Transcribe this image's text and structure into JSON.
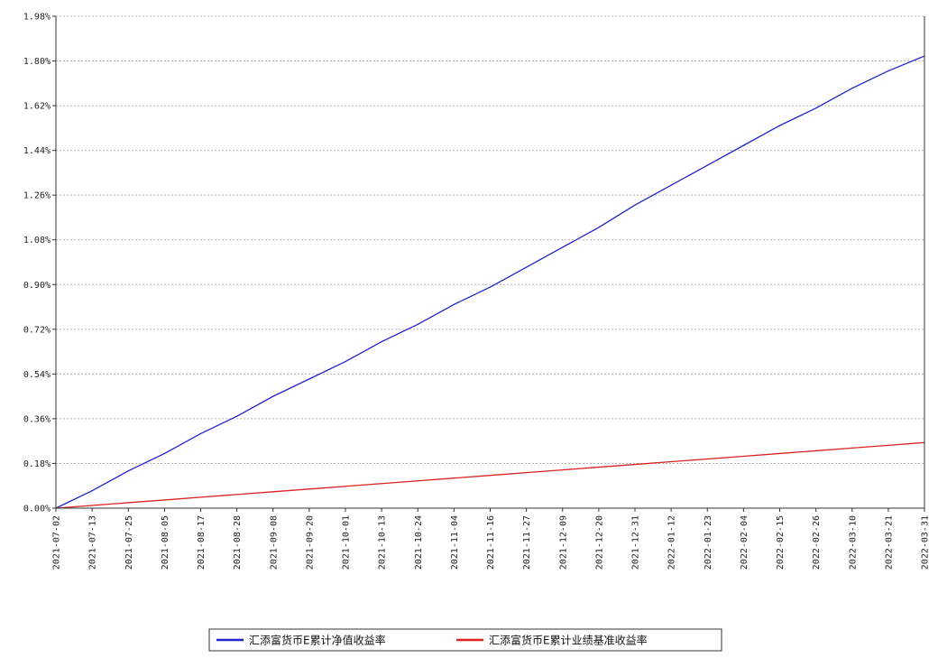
{
  "chart_data": {
    "type": "line",
    "x_ticks": [
      "2021-07-02",
      "2021-07-13",
      "2021-07-25",
      "2021-08-05",
      "2021-08-17",
      "2021-08-28",
      "2021-09-08",
      "2021-09-20",
      "2021-10-01",
      "2021-10-13",
      "2021-10-24",
      "2021-11-04",
      "2021-11-16",
      "2021-11-27",
      "2021-12-09",
      "2021-12-20",
      "2021-12-31",
      "2022-01-12",
      "2022-01-23",
      "2022-02-04",
      "2022-02-15",
      "2022-02-26",
      "2022-03-10",
      "2022-03-21",
      "2022-03-31"
    ],
    "y_ticks": [
      "0.00%",
      "0.18%",
      "0.36%",
      "0.54%",
      "0.72%",
      "0.90%",
      "1.08%",
      "1.26%",
      "1.44%",
      "1.62%",
      "1.80%",
      "1.98%"
    ],
    "ylim": [
      0,
      1.98
    ],
    "grid": "horizontal dashed",
    "legend_position": "bottom-center",
    "series": [
      {
        "name": "汇添富货币E累计净值收益率",
        "color": "#2222cc",
        "values": [
          0.0,
          0.07,
          0.15,
          0.22,
          0.3,
          0.37,
          0.45,
          0.52,
          0.59,
          0.67,
          0.74,
          0.82,
          0.89,
          0.97,
          1.05,
          1.13,
          1.22,
          1.3,
          1.38,
          1.46,
          1.54,
          1.61,
          1.69,
          1.76,
          1.82
        ]
      },
      {
        "name": "汇添富货币E累计业绩基准收益率",
        "color": "#dd2222",
        "values": [
          0.0,
          0.011,
          0.022,
          0.033,
          0.044,
          0.055,
          0.066,
          0.077,
          0.088,
          0.099,
          0.11,
          0.121,
          0.132,
          0.143,
          0.154,
          0.165,
          0.176,
          0.187,
          0.198,
          0.209,
          0.22,
          0.231,
          0.242,
          0.253,
          0.264
        ]
      }
    ]
  }
}
